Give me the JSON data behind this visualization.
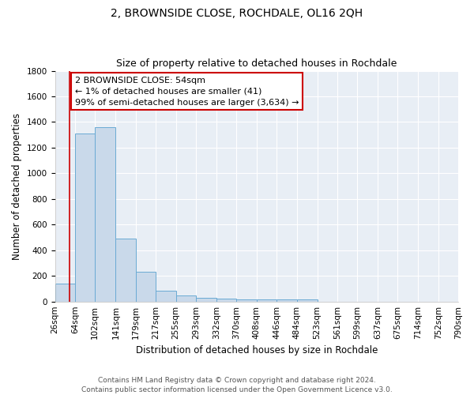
{
  "title": "2, BROWNSIDE CLOSE, ROCHDALE, OL16 2QH",
  "subtitle": "Size of property relative to detached houses in Rochdale",
  "xlabel": "Distribution of detached houses by size in Rochdale",
  "ylabel": "Number of detached properties",
  "footer": "Contains HM Land Registry data © Crown copyright and database right 2024.\nContains public sector information licensed under the Open Government Licence v3.0.",
  "bin_edges": [
    26,
    64,
    102,
    141,
    179,
    217,
    255,
    293,
    332,
    370,
    408,
    446,
    484,
    523,
    561,
    599,
    637,
    675,
    714,
    752,
    790
  ],
  "bin_labels": [
    "26sqm",
    "64sqm",
    "102sqm",
    "141sqm",
    "179sqm",
    "217sqm",
    "255sqm",
    "293sqm",
    "332sqm",
    "370sqm",
    "408sqm",
    "446sqm",
    "484sqm",
    "523sqm",
    "561sqm",
    "599sqm",
    "637sqm",
    "675sqm",
    "714sqm",
    "752sqm",
    "790sqm"
  ],
  "bar_heights": [
    140,
    1310,
    1360,
    490,
    230,
    85,
    50,
    30,
    20,
    15,
    15,
    15,
    15,
    0,
    0,
    0,
    0,
    0,
    0,
    0
  ],
  "bar_color": "#c9d9ea",
  "bar_edge_color": "#6aaad4",
  "red_line_x": 54,
  "ylim": [
    0,
    1800
  ],
  "annotation_text": "2 BROWNSIDE CLOSE: 54sqm\n← 1% of detached houses are smaller (41)\n99% of semi-detached houses are larger (3,634) →",
  "annotation_box_color": "#ffffff",
  "annotation_border_color": "#cc0000",
  "bg_color": "#e8eef5",
  "grid_color": "#ffffff",
  "title_fontsize": 10,
  "subtitle_fontsize": 9,
  "label_fontsize": 8.5,
  "tick_fontsize": 7.5,
  "annotation_fontsize": 8,
  "footer_fontsize": 6.5
}
